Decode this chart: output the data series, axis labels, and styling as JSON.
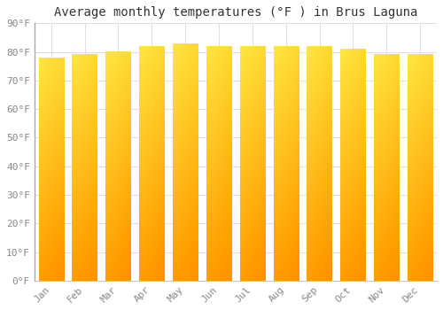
{
  "title": "Average monthly temperatures (°F ) in Brus Laguna",
  "months": [
    "Jan",
    "Feb",
    "Mar",
    "Apr",
    "May",
    "Jun",
    "Jul",
    "Aug",
    "Sep",
    "Oct",
    "Nov",
    "Dec"
  ],
  "values": [
    78,
    79,
    80,
    82,
    83,
    82,
    82,
    82,
    82,
    81,
    79,
    79
  ],
  "bar_color_main": "#FFA500",
  "bar_color_light": "#FFD700",
  "background_color": "#FFFFFF",
  "plot_background_color": "#FFFFFF",
  "grid_color": "#DDDDDD",
  "ylim": [
    0,
    90
  ],
  "yticks": [
    0,
    10,
    20,
    30,
    40,
    50,
    60,
    70,
    80,
    90
  ],
  "ytick_labels": [
    "0°F",
    "10°F",
    "20°F",
    "30°F",
    "40°F",
    "50°F",
    "60°F",
    "70°F",
    "80°F",
    "90°F"
  ],
  "title_fontsize": 10,
  "tick_fontsize": 8,
  "tick_font_color": "#888888",
  "spine_color": "#AAAAAA"
}
